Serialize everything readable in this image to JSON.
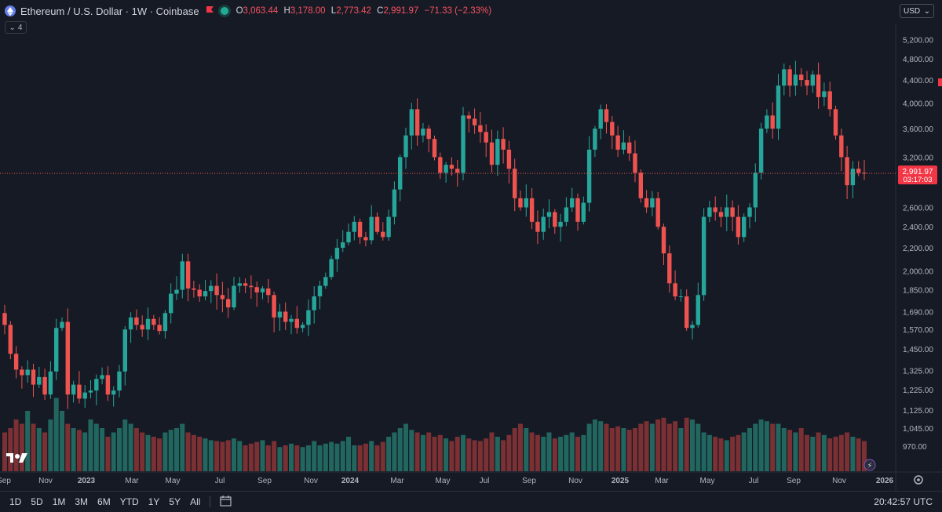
{
  "header": {
    "title": "Ethereum / U.S. Dollar · 1W · Coinbase",
    "ohlc": [
      {
        "k": "O",
        "v": "3,063.44"
      },
      {
        "k": "H",
        "v": "3,178.00"
      },
      {
        "k": "L",
        "v": "2,773.42"
      },
      {
        "k": "C",
        "v": "2,991.97"
      }
    ],
    "change": "−71.33 (−2.33%)",
    "indicator_count": "4",
    "currency": "USD"
  },
  "price_label": {
    "price": "2,991.97",
    "countdown": "03:17:03"
  },
  "bottombar": {
    "ranges": [
      "1D",
      "5D",
      "1M",
      "3M",
      "6M",
      "YTD",
      "1Y",
      "5Y",
      "All"
    ],
    "clock": "20:42:57 UTC"
  },
  "colors": {
    "up": "#26a69a",
    "down": "#ef5350",
    "background": "#161a25",
    "up_vol": "#22675f",
    "down_vol": "#7b3034"
  },
  "chart_data": {
    "type": "candlestick",
    "title": "Ethereum / U.S. Dollar · 1W · Coinbase",
    "y_scale": "log",
    "y_ticks": [
      970,
      1045,
      1125,
      1225,
      1325,
      1450,
      1570,
      1690,
      1850,
      2000,
      2200,
      2400,
      2600,
      3200,
      3600,
      4000,
      4400,
      4800,
      5200
    ],
    "y_tick_labels": [
      "970.00",
      "1,045.00",
      "1,125.00",
      "1,225.00",
      "1,325.00",
      "1,450.00",
      "1,570.00",
      "1,690.00",
      "1,850.00",
      "2,000.00",
      "2,200.00",
      "2,400.00",
      "2,600.00",
      "3,200.00",
      "3,600.00",
      "4,000.00",
      "4,400.00",
      "4,800.00",
      "5,200.00"
    ],
    "x_tick_labels": [
      "Sep",
      "Nov",
      "2023",
      "Mar",
      "May",
      "Jul",
      "Sep",
      "Nov",
      "2024",
      "Mar",
      "May",
      "Jul",
      "Sep",
      "Nov",
      "2025",
      "Mar",
      "May",
      "Jul",
      "Sep",
      "Nov",
      "2026"
    ],
    "x_tick_bold": [
      "2023",
      "2024",
      "2025",
      "2026"
    ],
    "last_price": 2991.97,
    "anchors": [
      [
        0,
        1600
      ],
      [
        1,
        1420
      ],
      [
        2,
        1330
      ],
      [
        3,
        1300
      ],
      [
        4,
        1330
      ],
      [
        5,
        1250
      ],
      [
        6,
        1290
      ],
      [
        7,
        1200
      ],
      [
        8,
        1320
      ],
      [
        9,
        1580
      ],
      [
        10,
        1620
      ],
      [
        11,
        1200
      ],
      [
        12,
        1250
      ],
      [
        13,
        1180
      ],
      [
        14,
        1210
      ],
      [
        15,
        1220
      ],
      [
        16,
        1280
      ],
      [
        17,
        1300
      ],
      [
        18,
        1200
      ],
      [
        19,
        1220
      ],
      [
        20,
        1320
      ],
      [
        21,
        1570
      ],
      [
        22,
        1650
      ],
      [
        23,
        1600
      ],
      [
        24,
        1570
      ],
      [
        25,
        1640
      ],
      [
        26,
        1600
      ],
      [
        27,
        1560
      ],
      [
        28,
        1680
      ],
      [
        29,
        1820
      ],
      [
        30,
        1850
      ],
      [
        31,
        2080
      ],
      [
        32,
        1860
      ],
      [
        33,
        1850
      ],
      [
        34,
        1800
      ],
      [
        35,
        1840
      ],
      [
        36,
        1880
      ],
      [
        37,
        1810
      ],
      [
        38,
        1780
      ],
      [
        39,
        1720
      ],
      [
        40,
        1880
      ],
      [
        41,
        1900
      ],
      [
        42,
        1880
      ],
      [
        43,
        1870
      ],
      [
        44,
        1830
      ],
      [
        45,
        1860
      ],
      [
        46,
        1810
      ],
      [
        47,
        1650
      ],
      [
        48,
        1690
      ],
      [
        49,
        1620
      ],
      [
        50,
        1640
      ],
      [
        51,
        1580
      ],
      [
        52,
        1600
      ],
      [
        53,
        1700
      ],
      [
        54,
        1800
      ],
      [
        55,
        1880
      ],
      [
        56,
        1950
      ],
      [
        57,
        2100
      ],
      [
        58,
        2200
      ],
      [
        59,
        2250
      ],
      [
        60,
        2350
      ],
      [
        61,
        2450
      ],
      [
        62,
        2300
      ],
      [
        63,
        2270
      ],
      [
        64,
        2500
      ],
      [
        65,
        2350
      ],
      [
        66,
        2300
      ],
      [
        67,
        2500
      ],
      [
        68,
        2800
      ],
      [
        69,
        3200
      ],
      [
        70,
        3500
      ],
      [
        71,
        3900
      ],
      [
        72,
        3500
      ],
      [
        73,
        3600
      ],
      [
        74,
        3450
      ],
      [
        75,
        3200
      ],
      [
        76,
        3000
      ],
      [
        77,
        3100
      ],
      [
        78,
        3050
      ],
      [
        79,
        3000
      ],
      [
        80,
        3800
      ],
      [
        81,
        3750
      ],
      [
        82,
        3650
      ],
      [
        83,
        3550
      ],
      [
        84,
        3400
      ],
      [
        85,
        3100
      ],
      [
        86,
        3450
      ],
      [
        87,
        3300
      ],
      [
        88,
        3050
      ],
      [
        89,
        2700
      ],
      [
        90,
        2600
      ],
      [
        91,
        2700
      ],
      [
        92,
        2450
      ],
      [
        93,
        2350
      ],
      [
        94,
        2500
      ],
      [
        95,
        2550
      ],
      [
        96,
        2400
      ],
      [
        97,
        2450
      ],
      [
        98,
        2600
      ],
      [
        99,
        2700
      ],
      [
        100,
        2450
      ],
      [
        101,
        2650
      ],
      [
        102,
        3300
      ],
      [
        103,
        3600
      ],
      [
        104,
        3900
      ],
      [
        105,
        3700
      ],
      [
        106,
        3500
      ],
      [
        107,
        3300
      ],
      [
        108,
        3400
      ],
      [
        109,
        3250
      ],
      [
        110,
        3000
      ],
      [
        111,
        2700
      ],
      [
        112,
        2600
      ],
      [
        113,
        2700
      ],
      [
        114,
        2400
      ],
      [
        115,
        2150
      ],
      [
        116,
        1900
      ],
      [
        117,
        1800
      ],
      [
        118,
        1800
      ],
      [
        119,
        1580
      ],
      [
        120,
        1600
      ],
      [
        121,
        1810
      ],
      [
        122,
        2500
      ],
      [
        123,
        2600
      ],
      [
        124,
        2550
      ],
      [
        125,
        2500
      ],
      [
        126,
        2600
      ],
      [
        127,
        2500
      ],
      [
        128,
        2300
      ],
      [
        129,
        2500
      ],
      [
        130,
        2600
      ],
      [
        131,
        3000
      ],
      [
        132,
        3600
      ],
      [
        133,
        3800
      ],
      [
        134,
        3600
      ],
      [
        135,
        4300
      ],
      [
        136,
        4600
      ],
      [
        137,
        4300
      ],
      [
        138,
        4500
      ],
      [
        139,
        4400
      ],
      [
        140,
        4300
      ],
      [
        141,
        4500
      ],
      [
        142,
        4100
      ],
      [
        143,
        4200
      ],
      [
        144,
        3900
      ],
      [
        145,
        3500
      ],
      [
        146,
        3200
      ],
      [
        147,
        2850
      ],
      [
        148,
        3050
      ],
      [
        149,
        3000
      ],
      [
        150,
        2992
      ]
    ],
    "volume_relative": [
      0.45,
      0.5,
      0.6,
      0.55,
      0.7,
      0.55,
      0.5,
      0.45,
      0.6,
      0.85,
      0.7,
      0.55,
      0.5,
      0.48,
      0.45,
      0.6,
      0.55,
      0.5,
      0.4,
      0.45,
      0.5,
      0.6,
      0.55,
      0.5,
      0.45,
      0.42,
      0.4,
      0.38,
      0.45,
      0.48,
      0.5,
      0.55,
      0.45,
      0.42,
      0.4,
      0.38,
      0.36,
      0.35,
      0.34,
      0.36,
      0.38,
      0.35,
      0.3,
      0.32,
      0.34,
      0.36,
      0.3,
      0.35,
      0.28,
      0.3,
      0.32,
      0.3,
      0.28,
      0.3,
      0.35,
      0.3,
      0.32,
      0.34,
      0.32,
      0.35,
      0.4,
      0.3,
      0.3,
      0.32,
      0.35,
      0.3,
      0.34,
      0.4,
      0.45,
      0.5,
      0.55,
      0.48,
      0.45,
      0.42,
      0.45,
      0.4,
      0.42,
      0.38,
      0.35,
      0.4,
      0.42,
      0.38,
      0.36,
      0.35,
      0.38,
      0.45,
      0.4,
      0.36,
      0.42,
      0.5,
      0.55,
      0.5,
      0.45,
      0.42,
      0.4,
      0.45,
      0.38,
      0.4,
      0.42,
      0.45,
      0.4,
      0.42,
      0.55,
      0.6,
      0.58,
      0.55,
      0.5,
      0.52,
      0.5,
      0.48,
      0.5,
      0.55,
      0.58,
      0.55,
      0.6,
      0.62,
      0.55,
      0.58,
      0.5,
      0.62,
      0.6,
      0.55,
      0.45,
      0.42,
      0.4,
      0.38,
      0.36,
      0.4,
      0.42,
      0.45,
      0.5,
      0.55,
      0.6,
      0.58,
      0.55,
      0.55,
      0.5,
      0.48,
      0.45,
      0.5,
      0.42,
      0.4,
      0.45,
      0.42,
      0.38,
      0.4,
      0.42,
      0.45,
      0.4,
      0.38,
      0.35
    ]
  }
}
